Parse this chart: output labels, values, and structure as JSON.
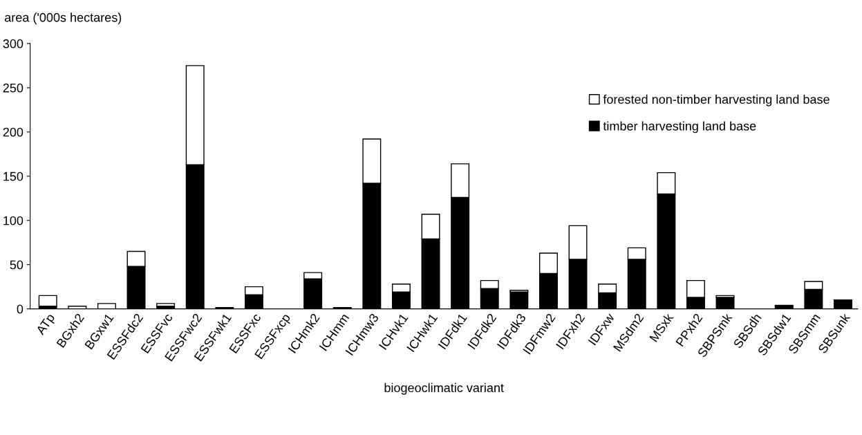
{
  "chart_data": {
    "type": "bar",
    "stacked": true,
    "xlabel": "biogeoclimatic variant",
    "ylabel": "area ('000s hectares)",
    "categories": [
      "ATp",
      "BGxh2",
      "BGxw1",
      "ESSFdc2",
      "ESSFvc",
      "ESSFwc2",
      "ESSFwk1",
      "ESSFxc",
      "ESSFxcp",
      "ICHmk2",
      "ICHmm",
      "ICHmw3",
      "ICHvk1",
      "ICHwk1",
      "IDFdk1",
      "IDFdk2",
      "IDFdk3",
      "IDFmw2",
      "IDFxh2",
      "IDFxw",
      "MSdm2",
      "MSxk",
      "PPxh2",
      "SBPSmk",
      "SBSdh",
      "SBSdw1",
      "SBSmm",
      "SBSunk"
    ],
    "series": [
      {
        "name": "timber harvesting land base",
        "color": "#000000",
        "values": [
          3,
          null,
          null,
          48,
          3,
          163,
          1.5,
          16,
          0,
          34,
          1.5,
          142,
          19,
          79,
          126,
          23,
          19,
          40,
          56,
          18,
          56,
          130,
          13,
          13,
          0,
          3,
          22,
          10
        ]
      },
      {
        "name": "forested non-timber harvesting land base",
        "color": "#ffffff",
        "values": [
          12,
          3,
          6,
          17,
          3,
          112,
          null,
          9,
          null,
          7,
          null,
          50,
          9,
          28,
          38,
          9,
          2,
          23,
          38,
          10,
          13,
          24,
          19,
          2,
          null,
          1,
          9,
          null
        ]
      }
    ],
    "ylim": [
      0,
      300
    ],
    "yticks": [
      0,
      50,
      100,
      150,
      200,
      250,
      300
    ],
    "grid": false,
    "legend": "top right"
  }
}
